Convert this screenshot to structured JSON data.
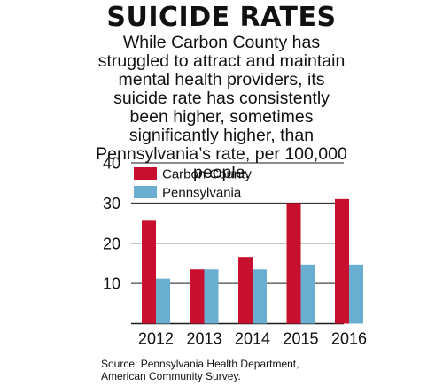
{
  "title": "SUICIDE RATES",
  "subtitle": "While Carbon County has struggled to attract and maintain mental health providers, its suicide rate has consistently been higher, sometimes significantly higher, than Pennsylvania’s rate, per 100,000 people.",
  "source": "Source: Pennsylvania Health Department, American Community Survey.",
  "colors": {
    "carbon": "#c8102e",
    "pennsylvania": "#6aaed0",
    "grid": "#1a1a1a"
  },
  "chart_data": {
    "type": "bar",
    "categories": [
      "2012",
      "2013",
      "2014",
      "2015",
      "2016"
    ],
    "series": [
      {
        "name": "Carbon County",
        "values": [
          25.6,
          13.5,
          16.6,
          30.0,
          31.0
        ]
      },
      {
        "name": "Pennsylvania",
        "values": [
          11.2,
          13.5,
          13.5,
          14.7,
          14.7
        ]
      }
    ],
    "yticks": [
      10,
      20,
      30,
      40
    ],
    "ylim": [
      0,
      40
    ],
    "grid": true,
    "legend": "top-left"
  }
}
